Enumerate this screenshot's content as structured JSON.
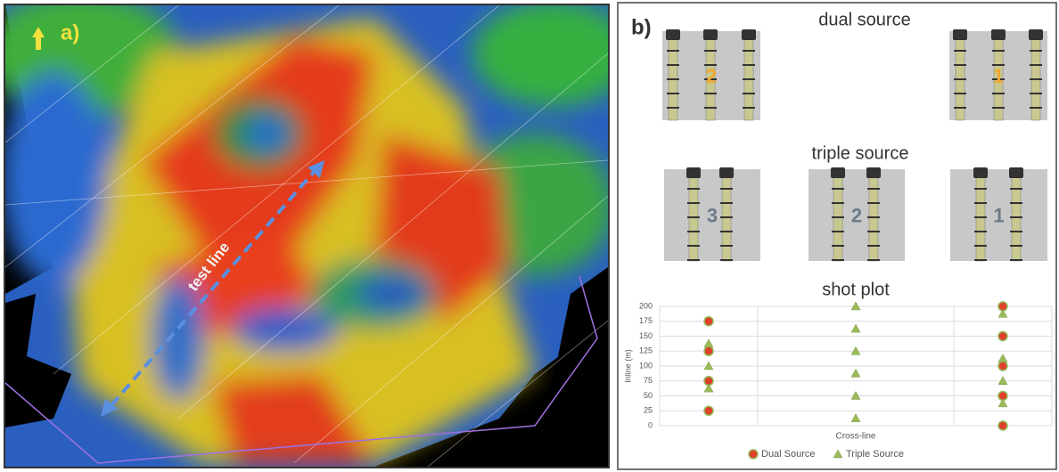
{
  "panel_a": {
    "label": "a)",
    "annotation": "test line"
  },
  "panel_b": {
    "label": "b)",
    "dual_source": {
      "title": "dual source",
      "numbers": [
        "2",
        "1"
      ]
    },
    "triple_source": {
      "title": "triple source",
      "numbers": [
        "3",
        "2",
        "1"
      ]
    }
  },
  "chart_data": {
    "type": "scatter",
    "title": "shot plot",
    "x_label": "Cross-line",
    "y_label": "Inline  (m)",
    "xlim": [
      0,
      4
    ],
    "ylim": [
      0,
      200
    ],
    "yticks": [
      0,
      25,
      50,
      75,
      100,
      125,
      150,
      175,
      200
    ],
    "grid": true,
    "series": [
      {
        "name": "Dual Source",
        "color": "#e0402a",
        "marker": "circle",
        "x": [
          0.5,
          0.5,
          0.5,
          0.5,
          3.5,
          3.5,
          3.5,
          3.5,
          3.5
        ],
        "values": [
          175,
          125,
          75,
          25,
          200,
          150,
          100,
          50,
          0
        ]
      },
      {
        "name": "Triple Source",
        "color": "#9bbb59",
        "marker": "triangle",
        "x": [
          0.5,
          0.5,
          0.5,
          2,
          2,
          2,
          2,
          2,
          2,
          3.5,
          3.5,
          3.5,
          3.5
        ],
        "values": [
          137.5,
          100,
          62.5,
          200,
          162.5,
          125,
          87.5,
          50,
          12.5,
          187.5,
          112.5,
          75,
          37.5
        ]
      }
    ]
  }
}
